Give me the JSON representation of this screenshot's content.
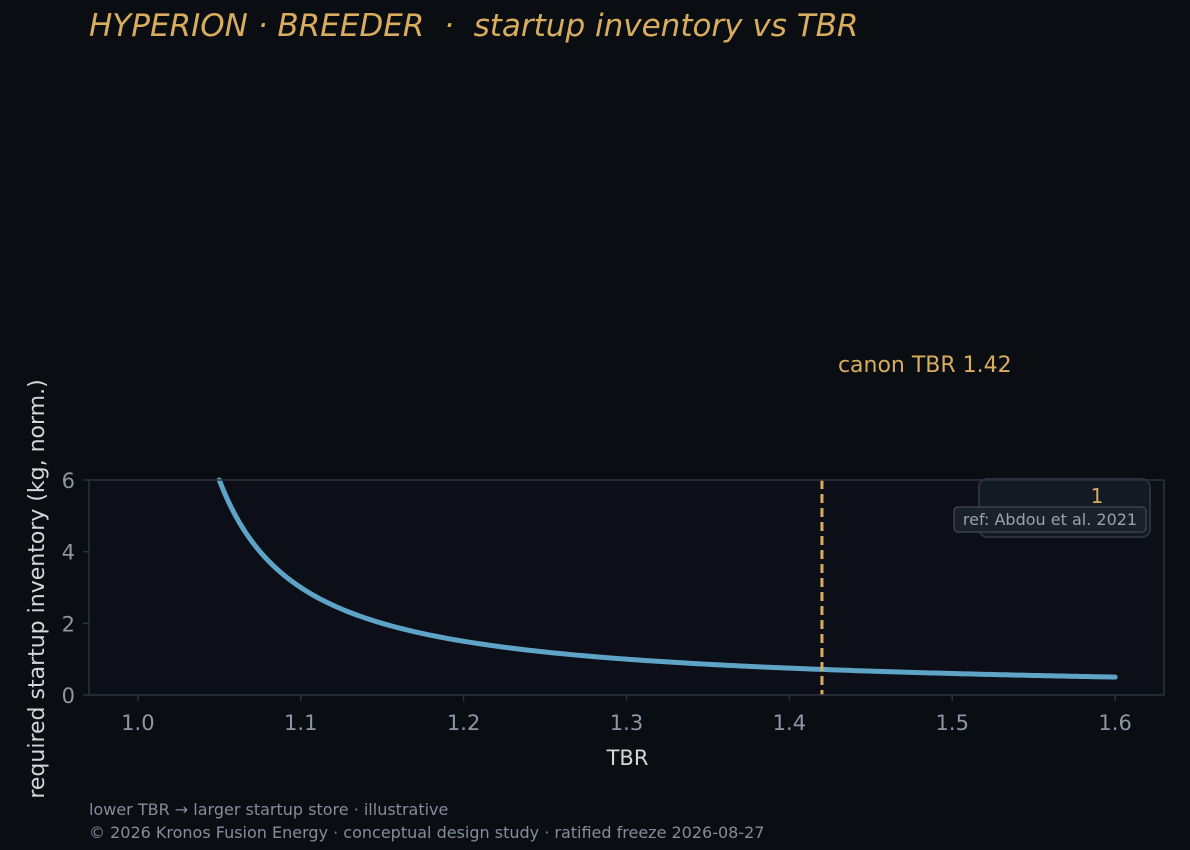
{
  "title": "HYPERION · BREEDER  ·  startup inventory vs TBR",
  "footer": {
    "line1": "lower TBR → larger startup store · illustrative",
    "line2": "© 2026 Kronos Fusion Energy · conceptual design study · ratified freeze 2026-08-27"
  },
  "colors": {
    "background": "#0a0d12",
    "plot_background": "#0c0f17",
    "accent": "#d8ad5e",
    "curve": "#5ea4c6",
    "tick_text": "#8d96a3",
    "axis_label": "#d3d7dc",
    "spine": "#2c323b"
  },
  "chart_data": {
    "type": "line",
    "title": "HYPERION · BREEDER  ·  startup inventory vs TBR",
    "xlabel": "TBR",
    "ylabel": "required startup inventory (kg, norm.)",
    "xlim": [
      0.97,
      1.63
    ],
    "ylim": [
      0,
      6
    ],
    "xticks": [
      "1.0",
      "1.1",
      "1.2",
      "1.3",
      "1.4",
      "1.5",
      "1.6"
    ],
    "yticks": [
      "0",
      "2",
      "4",
      "6"
    ],
    "grid": false,
    "series": [
      {
        "x": [
          1.05,
          1.06,
          1.07,
          1.08,
          1.1,
          1.12,
          1.15,
          1.2,
          1.25,
          1.3,
          1.35,
          1.4,
          1.45,
          1.5,
          1.55,
          1.6
        ],
        "values": [
          6.0,
          5.0,
          4.29,
          3.75,
          3.0,
          2.5,
          2.0,
          1.5,
          1.2,
          1.0,
          0.857,
          0.75,
          0.667,
          0.6,
          0.545,
          0.5
        ]
      }
    ],
    "annotations": {
      "canon_line_x": 1.42,
      "canon_label": "canon TBR 1.42",
      "formula_numerator": "1",
      "reference": "ref: Abdou et al. 2021"
    }
  }
}
